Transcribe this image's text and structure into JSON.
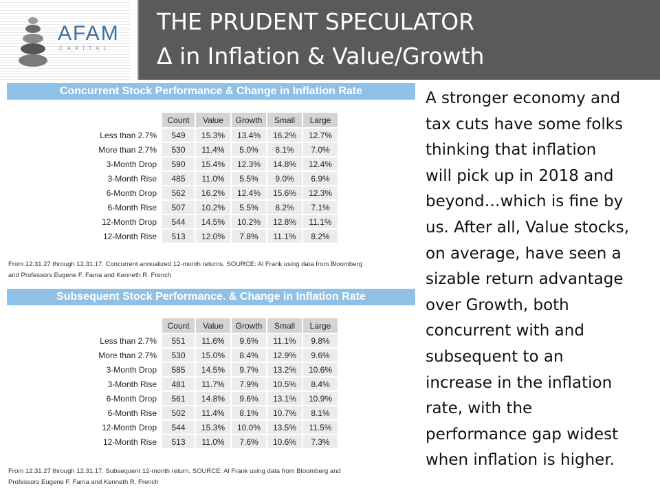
{
  "header": {
    "logo_name": "AFAM",
    "logo_sub": "CAPITAL",
    "title_line1": "THE PRUDENT SPECULATOR",
    "title_line2": "Δ in Inflation & Value/Growth"
  },
  "columns": [
    "Count",
    "Value",
    "Growth",
    "Small",
    "Large"
  ],
  "table1": {
    "title": "Concurrent Stock Performance & Change in Inflation Rate",
    "rows": [
      {
        "label": "Less than 2.7%",
        "values": [
          "549",
          "15.3%",
          "13.4%",
          "16.2%",
          "12.7%"
        ]
      },
      {
        "label": "More than 2.7%",
        "values": [
          "530",
          "11.4%",
          "5.0%",
          "8.1%",
          "7.0%"
        ]
      },
      {
        "label": "3-Month Drop",
        "values": [
          "590",
          "15.4%",
          "12.3%",
          "14.8%",
          "12.4%"
        ]
      },
      {
        "label": "3-Month Rise",
        "values": [
          "485",
          "11.0%",
          "5.5%",
          "9.0%",
          "6.9%"
        ]
      },
      {
        "label": "6-Month Drop",
        "values": [
          "562",
          "16.2%",
          "12.4%",
          "15.6%",
          "12.3%"
        ]
      },
      {
        "label": "6-Month Rise",
        "values": [
          "507",
          "10.2%",
          "5.5%",
          "8.2%",
          "7.1%"
        ]
      },
      {
        "label": "12-Month Drop",
        "values": [
          "544",
          "14.5%",
          "10.2%",
          "12.8%",
          "11.1%"
        ]
      },
      {
        "label": "12-Month Rise",
        "values": [
          "513",
          "12.0%",
          "7.8%",
          "11.1%",
          "8.2%"
        ]
      }
    ],
    "note_line1": "From 12.31.27 through 12.31.17. Concurrent annualized 12-month returns. SOURCE: Al Frank using data from Bloomberg",
    "note_line2": "and Professors Eugene F. Fama and Kenneth R. French"
  },
  "table2": {
    "title": "Subsequent Stock Performance. & Change in Inflation Rate",
    "rows": [
      {
        "label": "Less than 2.7%",
        "values": [
          "551",
          "11.6%",
          "9.6%",
          "11.1%",
          "9.8%"
        ]
      },
      {
        "label": "More than 2.7%",
        "values": [
          "530",
          "15.0%",
          "8.4%",
          "12.9%",
          "9.6%"
        ]
      },
      {
        "label": "3-Month Drop",
        "values": [
          "585",
          "14.5%",
          "9.7%",
          "13.2%",
          "10.6%"
        ]
      },
      {
        "label": "3-Month Rise",
        "values": [
          "481",
          "11.7%",
          "7.9%",
          "10.5%",
          "8.4%"
        ]
      },
      {
        "label": "6-Month Drop",
        "values": [
          "561",
          "14.8%",
          "9.6%",
          "13.1%",
          "10.9%"
        ]
      },
      {
        "label": "6-Month Rise",
        "values": [
          "502",
          "11.4%",
          "8.1%",
          "10.7%",
          "8.1%"
        ]
      },
      {
        "label": "12-Month Drop",
        "values": [
          "544",
          "15.3%",
          "10.0%",
          "13.5%",
          "11.5%"
        ]
      },
      {
        "label": "12-Month Rise",
        "values": [
          "513",
          "11.0%",
          "7.6%",
          "10.6%",
          "7.3%"
        ]
      }
    ],
    "note_line1": "From 12.31.27 through 12.31.17. Subsequent 12-month return. SOURCE: Al Frank using data from Bloomberg and",
    "note_line2": "Professors Eugene F. Fama and Kenneth R. French"
  },
  "commentary": [
    "A stronger economy and",
    "tax cuts have some folks",
    "thinking that inflation",
    "will pick up in 2018 and",
    "beyond…which is fine by",
    "us. After all, Value stocks,",
    "on average, have seen a",
    "sizable return advantage",
    "over Growth, both",
    "concurrent with and",
    "subsequent to an",
    "increase in the inflation",
    "rate, with the",
    "performance gap widest",
    "when inflation is higher."
  ],
  "colors": {
    "header_bg": "#5a5a5a",
    "banner_bg": "#8fc0e6",
    "header_cell_bg": "#d4d4d4",
    "data_cell_bg": "#ececec",
    "logo_blue": "#3d6fa0"
  },
  "icons": {
    "logo": "stacked-stones-icon"
  }
}
